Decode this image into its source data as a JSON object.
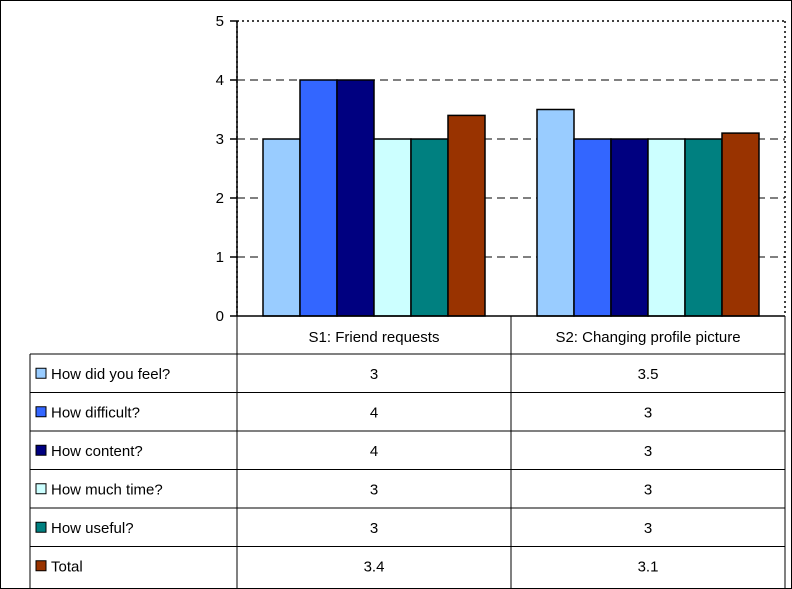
{
  "chart_data": {
    "type": "bar",
    "categories": [
      "S1: Friend requests",
      "S2: Changing profile picture"
    ],
    "series": [
      {
        "name": "How did you feel?",
        "values": [
          3,
          3.5
        ],
        "color": "#99ccff"
      },
      {
        "name": "How difficult?",
        "values": [
          4,
          3
        ],
        "color": "#3366ff"
      },
      {
        "name": "How content?",
        "values": [
          4,
          3
        ],
        "color": "#000080"
      },
      {
        "name": "How much time?",
        "values": [
          3,
          3
        ],
        "color": "#ccffff"
      },
      {
        "name": "How useful?",
        "values": [
          3,
          3
        ],
        "color": "#008080"
      },
      {
        "name": "Total",
        "values": [
          3.4,
          3.1
        ],
        "color": "#993300"
      }
    ],
    "value_labels": [
      [
        "3",
        "3.5"
      ],
      [
        "4",
        "3"
      ],
      [
        "4",
        "3"
      ],
      [
        "3",
        "3"
      ],
      [
        "3",
        "3"
      ],
      [
        "3.4",
        "3.1"
      ]
    ],
    "ylim": [
      0,
      5
    ],
    "yticks": [
      "0",
      "1",
      "2",
      "3",
      "4",
      "5"
    ],
    "grid": true,
    "legend": "data-table",
    "title": "",
    "xlabel": "",
    "ylabel": ""
  }
}
